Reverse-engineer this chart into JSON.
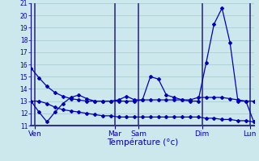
{
  "background_color": "#cce8ec",
  "grid_color": "#a8cdd4",
  "line_color": "#0000bb",
  "vline_color": "#333388",
  "title": "Température (°c)",
  "ylabel_min": 11,
  "ylabel_max": 21,
  "x_ticks_labels": [
    "Ven",
    "Mar",
    "Sam",
    "Dim",
    "Lun"
  ],
  "x_ticks_pos": [
    0.5,
    10.5,
    13.5,
    21.5,
    27.5
  ],
  "vline_pos": [
    0.5,
    10.5,
    13.5,
    21.5,
    27.5
  ],
  "xlim": [
    0,
    28
  ],
  "series1_x": [
    0,
    1,
    2,
    3,
    4,
    5,
    6,
    7,
    8,
    9,
    10,
    11,
    12,
    13,
    14,
    15,
    16,
    17,
    18,
    19,
    20,
    21,
    22,
    23,
    24,
    25,
    26,
    27,
    28
  ],
  "series1_y": [
    15.7,
    14.9,
    14.2,
    13.7,
    13.4,
    13.2,
    13.1,
    13.0,
    13.0,
    13.0,
    13.0,
    13.0,
    13.0,
    13.0,
    13.1,
    13.1,
    13.1,
    13.1,
    13.1,
    13.1,
    13.1,
    13.3,
    13.3,
    13.3,
    13.3,
    13.2,
    13.1,
    13.0,
    13.0
  ],
  "series2_x": [
    0,
    1,
    2,
    3,
    4,
    5,
    6,
    7,
    8,
    9,
    10,
    11,
    12,
    13,
    14,
    15,
    16,
    17,
    18,
    19,
    20,
    21,
    22,
    23,
    24,
    25,
    26,
    27,
    28
  ],
  "series2_y": [
    13.0,
    12.1,
    11.3,
    12.1,
    12.8,
    13.3,
    13.5,
    13.2,
    13.0,
    13.0,
    13.0,
    13.1,
    13.4,
    13.1,
    13.1,
    15.0,
    14.8,
    13.5,
    13.3,
    13.1,
    13.0,
    13.0,
    16.1,
    19.3,
    20.6,
    17.8,
    13.0,
    13.0,
    11.3
  ],
  "series3_x": [
    0,
    1,
    2,
    3,
    4,
    5,
    6,
    7,
    8,
    9,
    10,
    11,
    12,
    13,
    14,
    15,
    16,
    17,
    18,
    19,
    20,
    21,
    22,
    23,
    24,
    25,
    26,
    27,
    28
  ],
  "series3_y": [
    13.0,
    13.0,
    12.8,
    12.5,
    12.3,
    12.2,
    12.1,
    12.0,
    11.9,
    11.8,
    11.8,
    11.7,
    11.7,
    11.7,
    11.7,
    11.7,
    11.7,
    11.7,
    11.7,
    11.7,
    11.7,
    11.7,
    11.6,
    11.6,
    11.5,
    11.5,
    11.4,
    11.4,
    11.3
  ]
}
